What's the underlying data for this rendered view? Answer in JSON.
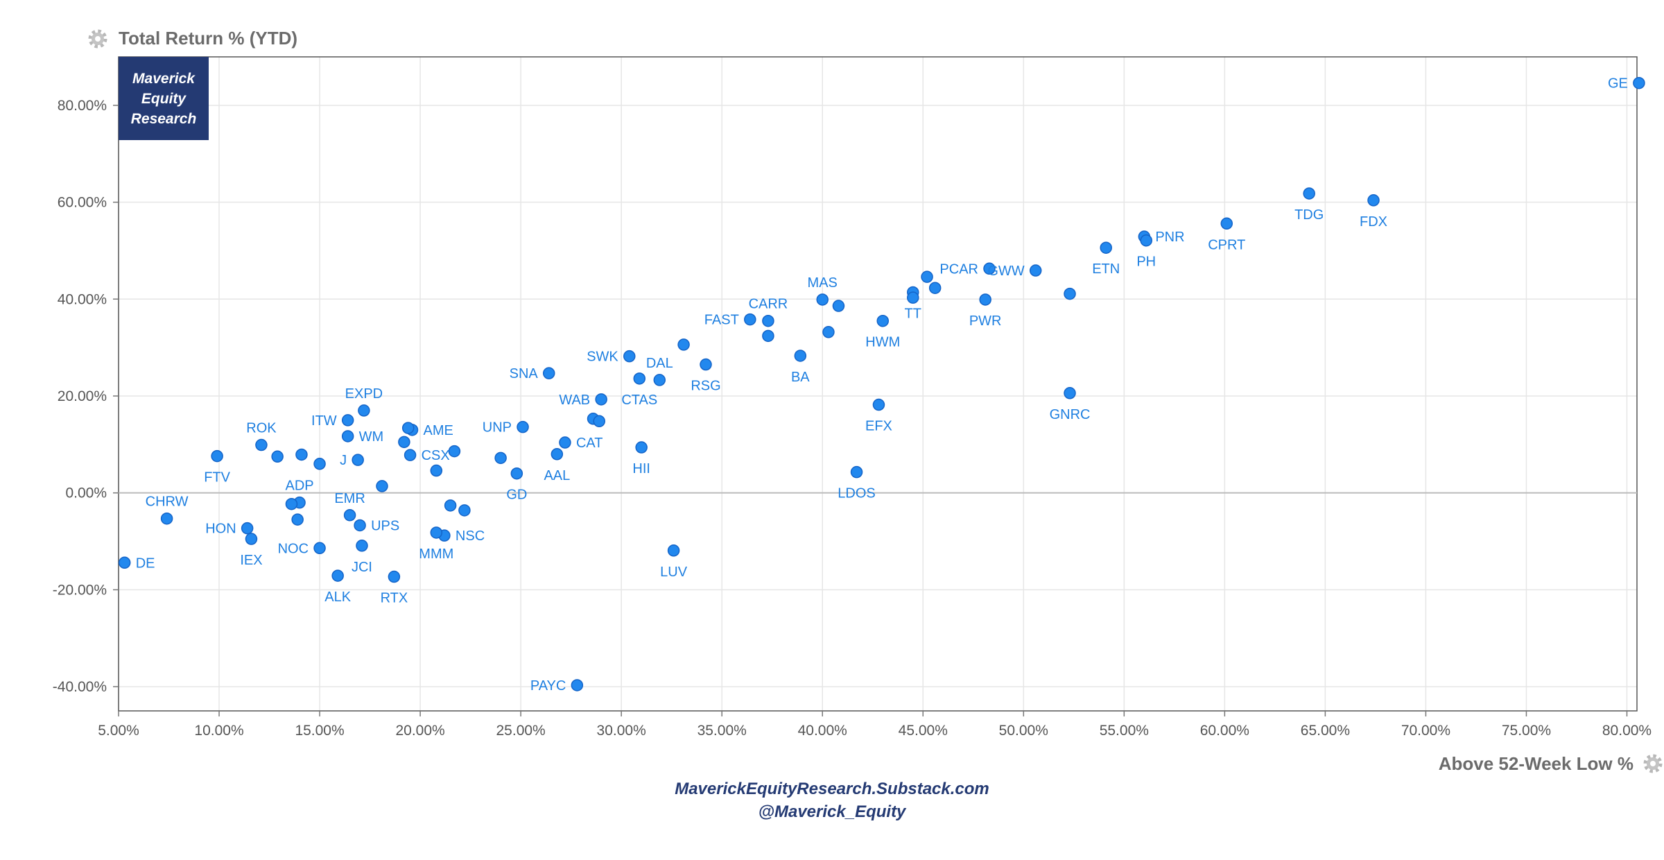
{
  "chart_data": {
    "type": "scatter",
    "ytitle": "Total Return % (YTD)",
    "xtitle": "Above 52-Week Low %",
    "xlim": [
      5,
      80.5
    ],
    "ylim": [
      -45,
      90
    ],
    "x_ticks": [
      5,
      10,
      15,
      20,
      25,
      30,
      35,
      40,
      45,
      50,
      55,
      60,
      65,
      70,
      75,
      80
    ],
    "x_tick_labels": [
      "5.00%",
      "10.00%",
      "15.00%",
      "20.00%",
      "25.00%",
      "30.00%",
      "35.00%",
      "40.00%",
      "45.00%",
      "50.00%",
      "55.00%",
      "60.00%",
      "65.00%",
      "70.00%",
      "75.00%",
      "80.00%"
    ],
    "y_ticks": [
      -40,
      -20,
      0,
      20,
      40,
      60,
      80
    ],
    "y_tick_labels": [
      "-40.00%",
      "-20.00%",
      "0.00%",
      "20.00%",
      "40.00%",
      "60.00%",
      "80.00%"
    ],
    "grid": true,
    "point_color": "#2288ee",
    "label_color": "#1e7fe0",
    "points": [
      {
        "label": "GE",
        "x": 80.6,
        "y": 84.6
      },
      {
        "label": "FDX",
        "x": 67.4,
        "y": 60.4
      },
      {
        "label": "TDG",
        "x": 64.2,
        "y": 61.8
      },
      {
        "label": "CPRT",
        "x": 60.1,
        "y": 55.6
      },
      {
        "label": "PNR",
        "x": 56.0,
        "y": 52.9
      },
      {
        "label": "PH",
        "x": 56.1,
        "y": 52.1
      },
      {
        "label": "ETN",
        "x": 54.1,
        "y": 50.6
      },
      {
        "label": "GWW",
        "x": 50.6,
        "y": 45.9
      },
      {
        "label": "",
        "x": 52.3,
        "y": 41.1
      },
      {
        "label": "PCAR",
        "x": 48.3,
        "y": 46.3
      },
      {
        "label": "PWR",
        "x": 48.1,
        "y": 39.9
      },
      {
        "label": "",
        "x": 45.2,
        "y": 44.6
      },
      {
        "label": "",
        "x": 45.6,
        "y": 42.3
      },
      {
        "label": "TT",
        "x": 44.5,
        "y": 41.4
      },
      {
        "label": "",
        "x": 44.5,
        "y": 40.3
      },
      {
        "label": "HWM",
        "x": 43.0,
        "y": 35.5
      },
      {
        "label": "GNRC",
        "x": 52.3,
        "y": 20.6
      },
      {
        "label": "EFX",
        "x": 42.8,
        "y": 18.2
      },
      {
        "label": "LDOS",
        "x": 41.7,
        "y": 4.3
      },
      {
        "label": "MAS",
        "x": 40.0,
        "y": 39.9
      },
      {
        "label": "",
        "x": 40.8,
        "y": 38.6
      },
      {
        "label": "",
        "x": 40.3,
        "y": 33.2
      },
      {
        "label": "BA",
        "x": 38.9,
        "y": 28.3
      },
      {
        "label": "CARR",
        "x": 37.3,
        "y": 35.5
      },
      {
        "label": "",
        "x": 37.3,
        "y": 32.4
      },
      {
        "label": "FAST",
        "x": 36.4,
        "y": 35.8
      },
      {
        "label": "RSG",
        "x": 34.2,
        "y": 26.5
      },
      {
        "label": "",
        "x": 33.1,
        "y": 30.6
      },
      {
        "label": "DAL",
        "x": 31.9,
        "y": 23.3
      },
      {
        "label": "CTAS",
        "x": 30.9,
        "y": 23.6
      },
      {
        "label": "SWK",
        "x": 30.4,
        "y": 28.2
      },
      {
        "label": "HII",
        "x": 31.0,
        "y": 9.4
      },
      {
        "label": "LUV",
        "x": 32.6,
        "y": -11.9
      },
      {
        "label": "WAB",
        "x": 29.0,
        "y": 19.3
      },
      {
        "label": "",
        "x": 28.6,
        "y": 15.3
      },
      {
        "label": "",
        "x": 28.9,
        "y": 14.8
      },
      {
        "label": "CAT",
        "x": 27.2,
        "y": 10.4
      },
      {
        "label": "AAL",
        "x": 26.8,
        "y": 8.0
      },
      {
        "label": "SNA",
        "x": 26.4,
        "y": 24.7
      },
      {
        "label": "UNP",
        "x": 25.1,
        "y": 13.6
      },
      {
        "label": "GD",
        "x": 24.8,
        "y": 4.0
      },
      {
        "label": "",
        "x": 24.0,
        "y": 7.2
      },
      {
        "label": "PAYC",
        "x": 27.8,
        "y": -39.7
      },
      {
        "label": "",
        "x": 21.7,
        "y": 8.6
      },
      {
        "label": "",
        "x": 20.8,
        "y": 4.6
      },
      {
        "label": "",
        "x": 21.5,
        "y": -2.6
      },
      {
        "label": "",
        "x": 22.2,
        "y": -3.6
      },
      {
        "label": "NSC",
        "x": 21.2,
        "y": -8.8
      },
      {
        "label": "MMM",
        "x": 20.8,
        "y": -8.2
      },
      {
        "label": "AME",
        "x": 19.6,
        "y": 13.0
      },
      {
        "label": "",
        "x": 19.4,
        "y": 13.4
      },
      {
        "label": "",
        "x": 19.2,
        "y": 10.5
      },
      {
        "label": "CSX",
        "x": 19.5,
        "y": 7.8
      },
      {
        "label": "",
        "x": 18.1,
        "y": 1.4
      },
      {
        "label": "RTX",
        "x": 18.7,
        "y": -17.3
      },
      {
        "label": "EXPD",
        "x": 17.2,
        "y": 17.0
      },
      {
        "label": "ITW",
        "x": 16.4,
        "y": 15.0
      },
      {
        "label": "WM",
        "x": 16.4,
        "y": 11.7
      },
      {
        "label": "J",
        "x": 16.9,
        "y": 6.8
      },
      {
        "label": "EMR",
        "x": 16.5,
        "y": -4.6
      },
      {
        "label": "UPS",
        "x": 17.0,
        "y": -6.7
      },
      {
        "label": "JCI",
        "x": 17.1,
        "y": -10.9
      },
      {
        "label": "ALK",
        "x": 15.9,
        "y": -17.1
      },
      {
        "label": "",
        "x": 15.0,
        "y": 6.0
      },
      {
        "label": "NOC",
        "x": 15.0,
        "y": -11.4
      },
      {
        "label": "ADP",
        "x": 14.0,
        "y": -2.0
      },
      {
        "label": "",
        "x": 13.6,
        "y": -2.3
      },
      {
        "label": "",
        "x": 13.9,
        "y": -5.5
      },
      {
        "label": "",
        "x": 14.1,
        "y": 7.9
      },
      {
        "label": "",
        "x": 12.9,
        "y": 7.5
      },
      {
        "label": "ROK",
        "x": 12.1,
        "y": 9.9
      },
      {
        "label": "FTV",
        "x": 9.9,
        "y": 7.6
      },
      {
        "label": "HON",
        "x": 11.4,
        "y": -7.3
      },
      {
        "label": "IEX",
        "x": 11.6,
        "y": -9.5
      },
      {
        "label": "CHRW",
        "x": 7.4,
        "y": -5.3
      },
      {
        "label": "DE",
        "x": 5.3,
        "y": -14.4
      }
    ]
  },
  "brand": {
    "line1": "Maverick",
    "line2": "Equity",
    "line3": "Research"
  },
  "footer": {
    "line1": "MaverickEquityResearch.Substack.com",
    "line2": "@Maverick_Equity"
  },
  "icons": {
    "top_left": "gear-icon",
    "bottom_right": "gear-icon"
  }
}
